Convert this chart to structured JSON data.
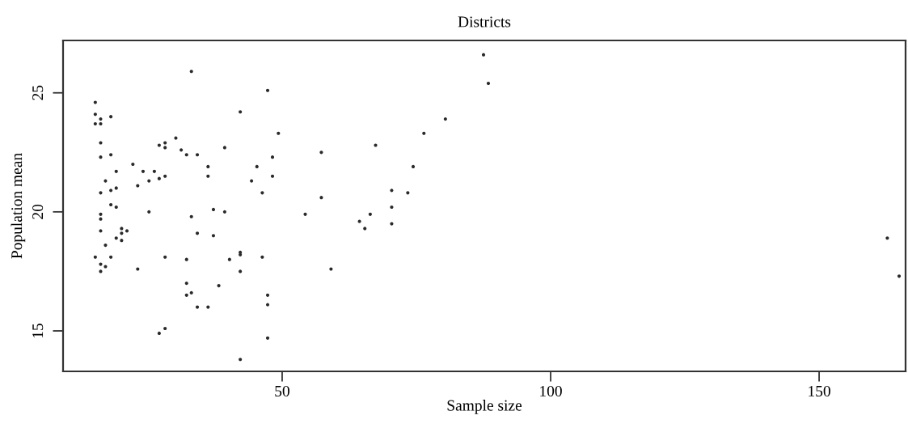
{
  "chart_data": {
    "type": "scatter",
    "title": "Districts",
    "xlabel": "Sample size",
    "ylabel": "Population mean",
    "xlim": [
      9.2,
      166.1
    ],
    "ylim": [
      13.3,
      27.2
    ],
    "xticks": [
      50,
      100,
      150
    ],
    "yticks": [
      15,
      20,
      25
    ],
    "grid": false,
    "marker": "circle",
    "series": [
      {
        "color": "#2a2a2a",
        "x": [
          33.1,
          15.2,
          15.2,
          18.1,
          16.2,
          15.2,
          16.2,
          16.2,
          30.2,
          27.1,
          28.2,
          28.2,
          31.2,
          32.2,
          16.2,
          18.1,
          22.2,
          19.1,
          24.1,
          26.2,
          17.1,
          25.2,
          27.1,
          28.2,
          23.1,
          18.1,
          19.1,
          16.2,
          18.1,
          19.1,
          16.2,
          16.2,
          25.2,
          33.1,
          16.2,
          20.1,
          21.1,
          20.1,
          19.1,
          20.1,
          17.1,
          15.2,
          18.1,
          28.2,
          32.2,
          16.2,
          17.1,
          16.2,
          23.1,
          32.2,
          32.2,
          33.1,
          28.2,
          27.1,
          47.3,
          42.2,
          49.3,
          39.3,
          34.2,
          48.2,
          57.3,
          36.2,
          36.2,
          45.3,
          48.2,
          44.3,
          46.3,
          57.3,
          37.2,
          39.3,
          54.3,
          34.2,
          37.2,
          40.2,
          42.2,
          42.2,
          46.3,
          42.2,
          59.1,
          38.2,
          34.2,
          36.2,
          47.3,
          47.3,
          47.3,
          42.2,
          87.5,
          88.4,
          80.4,
          76.4,
          67.4,
          74.4,
          70.4,
          73.4,
          70.4,
          66.4,
          64.4,
          65.4,
          70.4,
          162.7,
          164.9
        ],
        "values": [
          25.9,
          24.6,
          24.1,
          24.0,
          23.9,
          23.7,
          23.7,
          22.9,
          23.1,
          22.8,
          22.9,
          22.7,
          22.6,
          22.4,
          22.3,
          22.4,
          22.0,
          21.7,
          21.7,
          21.7,
          21.3,
          21.3,
          21.4,
          21.5,
          21.1,
          20.9,
          21.0,
          20.8,
          20.3,
          20.2,
          19.9,
          19.7,
          20.0,
          19.8,
          19.2,
          19.3,
          19.2,
          19.1,
          18.9,
          18.8,
          18.6,
          18.1,
          18.1,
          18.1,
          18.0,
          17.8,
          17.7,
          17.5,
          17.6,
          17.0,
          16.5,
          16.6,
          15.1,
          14.9,
          25.1,
          24.2,
          23.3,
          22.7,
          22.4,
          22.3,
          22.5,
          21.9,
          21.5,
          21.9,
          21.5,
          21.3,
          20.8,
          20.6,
          20.1,
          20.0,
          19.9,
          19.1,
          19.0,
          18.0,
          18.3,
          18.2,
          18.1,
          17.5,
          17.6,
          16.9,
          16.0,
          16.0,
          16.5,
          16.1,
          14.7,
          13.8,
          26.6,
          25.4,
          23.9,
          23.3,
          22.8,
          21.9,
          20.9,
          20.8,
          20.2,
          19.9,
          19.6,
          19.3,
          19.5,
          18.9,
          17.3
        ]
      }
    ]
  }
}
